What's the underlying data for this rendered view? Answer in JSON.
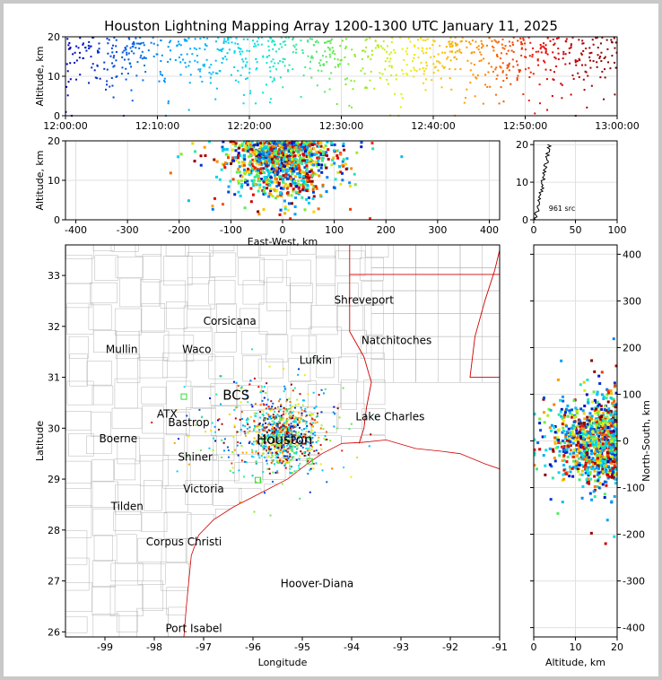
{
  "title": "Houston Lightning Mapping Array 1200-1300 UTC January 11, 2025",
  "colors": {
    "state_border": "#d00000",
    "county_border": "#b4b4b4",
    "grid": "#e0e0e0"
  },
  "chart_data": [
    {
      "type": "scatter",
      "name": "time-height",
      "xlabel": "",
      "ylabel": "Altitude, km",
      "x_ticks": [
        "12:00:00",
        "12:10:00",
        "12:20:00",
        "12:30:00",
        "12:40:00",
        "12:50:00",
        "13:00:00"
      ],
      "xlim_minutes": [
        0,
        60
      ],
      "ylim": [
        0,
        20
      ],
      "y_ticks": [
        0,
        10,
        20
      ],
      "color_by": "time"
    },
    {
      "type": "scatter",
      "name": "east-west-vs-altitude",
      "xlabel": "East-West, km",
      "ylabel": "Altitude, km",
      "xlim": [
        -420,
        420
      ],
      "ylim": [
        0,
        20
      ],
      "x_ticks": [
        -400,
        -300,
        -200,
        -100,
        0,
        100,
        200,
        300,
        400
      ],
      "y_ticks": [
        0,
        10,
        20
      ]
    },
    {
      "type": "line",
      "name": "altitude-histogram",
      "xlim": [
        0,
        100
      ],
      "ylim": [
        0,
        21
      ],
      "x_ticks": [
        0,
        50,
        100
      ],
      "y_ticks": [
        0,
        10,
        20
      ],
      "annotation": "961 src"
    },
    {
      "type": "scatter",
      "name": "plan-view-map",
      "xlabel": "Longitude",
      "ylabel": "Latitude",
      "xlim": [
        -99.8,
        -91
      ],
      "ylim": [
        25.9,
        33.6
      ],
      "x_ticks": [
        -99,
        -98,
        -97,
        -96,
        -95,
        -94,
        -93,
        -92,
        -91
      ],
      "y_ticks": [
        26,
        27,
        28,
        29,
        30,
        31,
        32,
        33
      ],
      "cities": [
        {
          "name": "Shreveport",
          "lon": -93.75,
          "lat": 32.52,
          "color": "#000000"
        },
        {
          "name": "Corsicana",
          "lon": -96.47,
          "lat": 32.1,
          "color": "#000000"
        },
        {
          "name": "Natchitoches",
          "lon": -93.09,
          "lat": 31.72,
          "color": "#000000"
        },
        {
          "name": "Mullin",
          "lon": -98.66,
          "lat": 31.55,
          "color": "#ff8c40"
        },
        {
          "name": "Waco",
          "lon": -97.14,
          "lat": 31.55,
          "color": "#000000"
        },
        {
          "name": "Lufkin",
          "lon": -94.73,
          "lat": 31.34,
          "color": "#000000"
        },
        {
          "name": "BCS",
          "lon": -96.34,
          "lat": 30.63,
          "color": "#700000",
          "big": true
        },
        {
          "name": "ATX",
          "lon": -97.74,
          "lat": 30.28,
          "color": "#ff8c40"
        },
        {
          "name": "Bastrop",
          "lon": -97.3,
          "lat": 30.11,
          "color": "#000000"
        },
        {
          "name": "Lake Charles",
          "lon": -93.22,
          "lat": 30.23,
          "color": "#000000"
        },
        {
          "name": "Boerne",
          "lon": -98.73,
          "lat": 29.79,
          "color": "#000000"
        },
        {
          "name": "Houston",
          "lon": -95.36,
          "lat": 29.76,
          "color": "#ffa500",
          "big": true
        },
        {
          "name": "Shiner",
          "lon": -97.17,
          "lat": 29.43,
          "color": "#000000"
        },
        {
          "name": "Victoria",
          "lon": -97.0,
          "lat": 28.81,
          "color": "#000000"
        },
        {
          "name": "Tilden",
          "lon": -98.55,
          "lat": 28.46,
          "color": "#000000"
        },
        {
          "name": "Corpus Christi",
          "lon": -97.4,
          "lat": 27.77,
          "color": "#000000"
        },
        {
          "name": "Hoover-Diana",
          "lon": -94.7,
          "lat": 26.95,
          "color": "#0000dd"
        },
        {
          "name": "Port Isabel",
          "lon": -97.2,
          "lat": 26.07,
          "color": "#000000"
        }
      ]
    },
    {
      "type": "scatter",
      "name": "altitude-vs-north-south",
      "xlabel": "Altitude, km",
      "ylabel": "North-South, km",
      "xlim": [
        0,
        20
      ],
      "ylim": [
        -420,
        420
      ],
      "x_ticks": [
        0,
        10,
        20
      ],
      "y_ticks": [
        -400,
        -300,
        -200,
        -100,
        0,
        100,
        200,
        300,
        400
      ]
    }
  ]
}
